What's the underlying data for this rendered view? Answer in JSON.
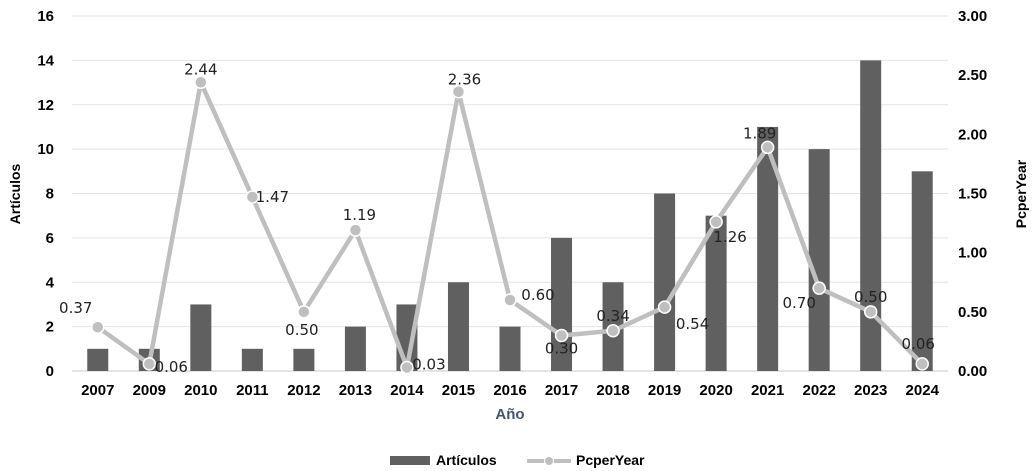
{
  "chart_data": {
    "type": "bar",
    "categories": [
      "2007",
      "2009",
      "2010",
      "2011",
      "2012",
      "2013",
      "2014",
      "2015",
      "2016",
      "2017",
      "2018",
      "2019",
      "2020",
      "2021",
      "2022",
      "2023",
      "2024"
    ],
    "series": [
      {
        "name": "Artículos",
        "type": "bar",
        "axis": "left",
        "color": "#606060",
        "values": [
          1,
          1,
          3,
          1,
          1,
          2,
          3,
          4,
          2,
          6,
          4,
          8,
          7,
          11,
          10,
          14,
          9
        ]
      },
      {
        "name": "PcperYear",
        "type": "line",
        "axis": "right",
        "color": "#bfbfbf",
        "values": [
          0.37,
          0.06,
          2.44,
          1.47,
          0.5,
          1.19,
          0.03,
          2.36,
          0.6,
          0.3,
          0.34,
          0.54,
          1.26,
          1.89,
          0.7,
          0.5,
          0.06
        ],
        "labels": [
          "0.37",
          "0.06",
          "2.44",
          "1.47",
          "0.50",
          "1.19",
          "0.03",
          "2.36",
          "0.60",
          "0.30",
          "0.34",
          "0.54",
          "1.26",
          "1.89",
          "0.70",
          "0.50",
          "0.06"
        ]
      }
    ],
    "xlabel": "Año",
    "ylabel": "Artículos",
    "y2label": "PcperYear",
    "ylim": [
      0,
      16
    ],
    "y2lim": [
      0,
      3
    ],
    "yticks": [
      "0",
      "2",
      "4",
      "6",
      "8",
      "10",
      "12",
      "14",
      "16"
    ],
    "y2ticks": [
      "0.00",
      "0.50",
      "1.00",
      "1.50",
      "2.00",
      "2.50",
      "3.00"
    ],
    "grid": true,
    "legend": "bottom-center"
  }
}
